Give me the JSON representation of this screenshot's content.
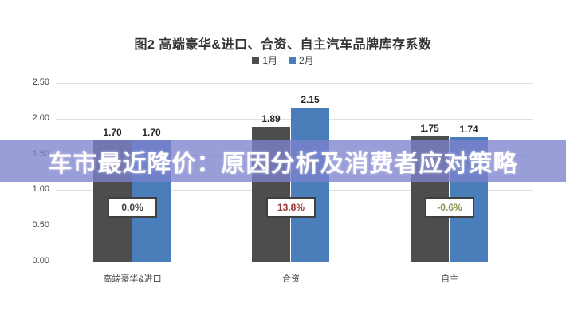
{
  "overlay": {
    "title": "车市最近降价：原因分析及消费者应对策略",
    "band_color": "rgba(124,129,205,0.78)"
  },
  "chart_data": {
    "type": "bar",
    "title": "图2  高端豪华&进口、合资、自主汽车品牌库存系数",
    "categories": [
      "高端豪华&进口",
      "合资",
      "自主"
    ],
    "series": [
      {
        "name": "1月",
        "color": "#4d4d4d",
        "values": [
          1.7,
          1.89,
          1.75
        ]
      },
      {
        "name": "2月",
        "color": "#4a7ebb",
        "values": [
          1.7,
          2.15,
          1.74
        ]
      }
    ],
    "value_labels": [
      [
        "1.70",
        "1.89",
        "1.75"
      ],
      [
        "1.70",
        "2.15",
        "1.74"
      ]
    ],
    "change_labels": [
      {
        "text": "0.0%",
        "color": "#404040"
      },
      {
        "text": "13.8%",
        "color": "#953735"
      },
      {
        "text": "-0.6%",
        "color": "#7f9246"
      }
    ],
    "xlabel": "",
    "ylabel": "",
    "ylim": [
      0,
      2.5
    ],
    "yticks": [
      "2.50",
      "2.00",
      "1.50",
      "1.00",
      "0.50",
      "0.00"
    ],
    "grid": true,
    "legend_position": "top"
  }
}
